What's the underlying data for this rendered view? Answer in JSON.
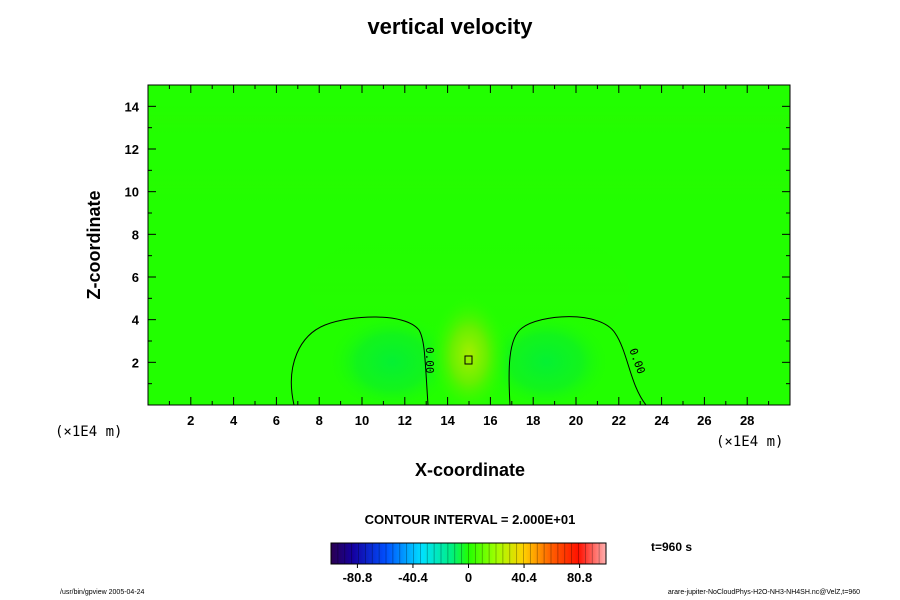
{
  "chart_data": {
    "type": "heatmap",
    "title": "vertical velocity",
    "xlabel": "X-coordinate",
    "ylabel": "Z-coordinate",
    "x_unit_label": "(×1E4 m)",
    "xlim": [
      0,
      30
    ],
    "ylim": [
      0,
      15
    ],
    "x_ticks": [
      2,
      4,
      6,
      8,
      10,
      12,
      14,
      16,
      18,
      20,
      22,
      24,
      26,
      28
    ],
    "y_ticks": [
      2,
      4,
      6,
      8,
      10,
      12,
      14
    ],
    "contour_labels": [
      {
        "text": "0.00",
        "x": 13.0,
        "y": 2.1
      },
      {
        "text": "0.00",
        "x": 22.7,
        "y": 2.0
      }
    ],
    "contour_interval_text": "CONTOUR INTERVAL = 2.000E+01",
    "colorbar": {
      "ticks": [
        "-80.8",
        "-40.4",
        "0",
        "40.4",
        "80.8"
      ],
      "tick_values": [
        -80.8,
        -40.4,
        0,
        40.4,
        80.8
      ],
      "range": [
        -100,
        100
      ]
    },
    "time_label": "t=960 s",
    "colors": {
      "background_field": "#22ff00",
      "updraft_core": "#8cf000",
      "downdraft_region": "#00ee3a"
    }
  },
  "footer": {
    "left": "/usr/bin/gpview 2005-04-24",
    "right": "arare-jupiter-NoCloudPhys-H2O-NH3-NH4SH.nc@VelZ,t=960"
  }
}
